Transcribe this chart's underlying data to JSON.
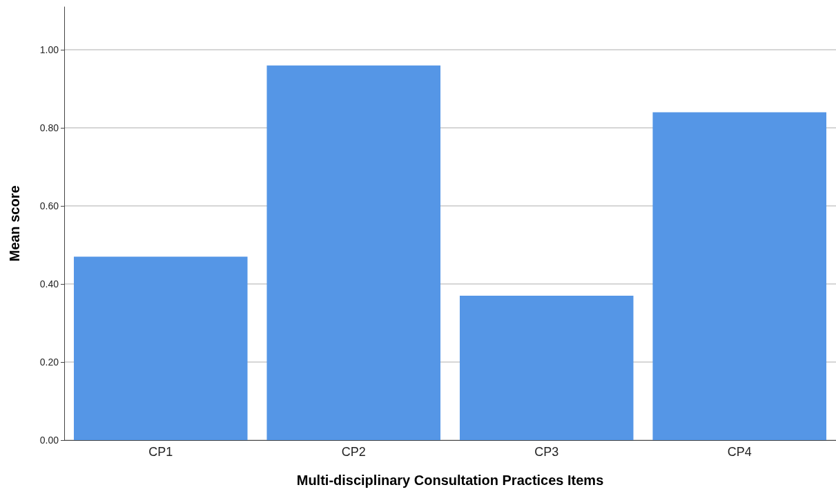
{
  "chart_data": {
    "type": "bar",
    "xlabel": "Multi-disciplinary Consultation Practices Items",
    "ylabel": "Mean score",
    "categories": [
      "CP1",
      "CP2",
      "CP3",
      "CP4"
    ],
    "values": [
      0.47,
      0.96,
      0.37,
      0.84
    ],
    "color": "#5596e6",
    "ylim": [
      0,
      1.11
    ],
    "yticks": [
      {
        "value": 0,
        "label": "0.00"
      },
      {
        "value": 0.2,
        "label": "0.20"
      },
      {
        "value": 0.4,
        "label": "0.40"
      },
      {
        "value": 0.6,
        "label": "0.60"
      },
      {
        "value": 0.8,
        "label": "0.80"
      },
      {
        "value": 1,
        "label": "1.00"
      }
    ],
    "grid": "y"
  }
}
